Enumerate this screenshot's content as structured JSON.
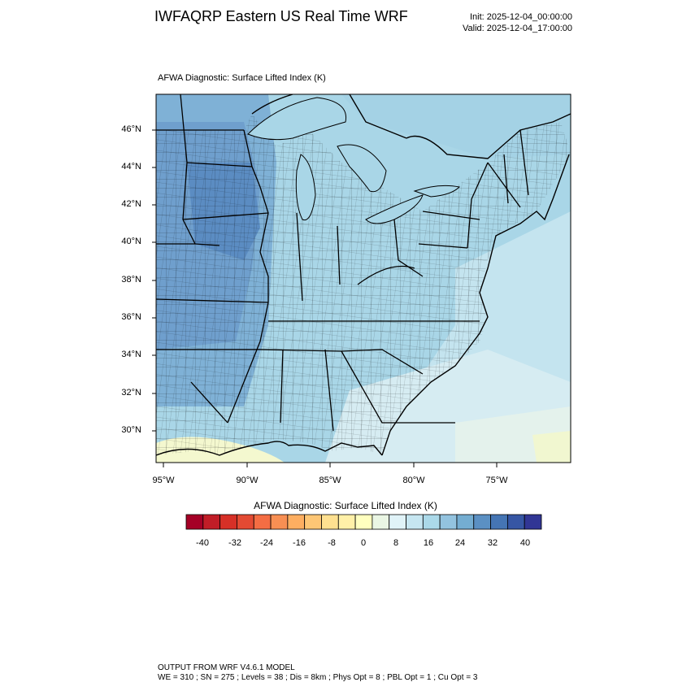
{
  "header": {
    "title": "IWFAQRP Eastern US Real Time WRF",
    "init": "Init: 2025-12-04_00:00:00",
    "valid": "Valid: 2025-12-04_17:00:00"
  },
  "field": {
    "title": "AFWA Diagnostic: Surface Lifted Index   (K)"
  },
  "map": {
    "lat_labels": [
      "46°N",
      "44°N",
      "42°N",
      "40°N",
      "38°N",
      "36°N",
      "34°N",
      "32°N",
      "30°N"
    ],
    "lon_labels": [
      "95°W",
      "90°W",
      "85°W",
      "80°W",
      "75°W"
    ]
  },
  "colorbar": {
    "title": "AFWA Diagnostic: Surface Lifted Index  (K)",
    "labels": [
      "-40",
      "-32",
      "-24",
      "-16",
      "-8",
      "0",
      "8",
      "16",
      "24",
      "32",
      "40"
    ],
    "colors": [
      "#a50026",
      "#c11d27",
      "#d73027",
      "#e34a33",
      "#f46d43",
      "#f88f53",
      "#fdae61",
      "#fdc675",
      "#fee090",
      "#fff0a8",
      "#ffffbf",
      "#eaf6e4",
      "#e0f3f8",
      "#c6e6f1",
      "#abd9e9",
      "#93c3df",
      "#74add1",
      "#5b90c3",
      "#4575b4",
      "#3656a4",
      "#313695"
    ]
  },
  "footer": {
    "line1": "OUTPUT FROM WRF V4.6.1 MODEL",
    "line2": "WE = 310 ; SN = 275 ; Levels = 38 ; Dis = 8km ; Phys Opt = 8 ; PBL Opt = 1 ; Cu Opt = 3"
  }
}
